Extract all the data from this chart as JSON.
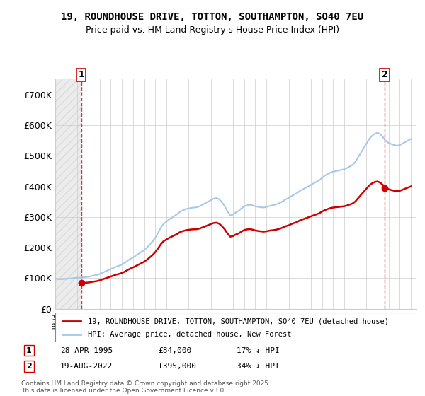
{
  "title": "19, ROUNDHOUSE DRIVE, TOTTON, SOUTHAMPTON, SO40 7EU",
  "subtitle": "Price paid vs. HM Land Registry's House Price Index (HPI)",
  "legend_line1": "19, ROUNDHOUSE DRIVE, TOTTON, SOUTHAMPTON, SO40 7EU (detached house)",
  "legend_line2": "HPI: Average price, detached house, New Forest",
  "marker1_label": "1",
  "marker1_date": "28-APR-1995",
  "marker1_price": "£84,000",
  "marker1_change": "17% ↓ HPI",
  "marker2_label": "2",
  "marker2_date": "19-AUG-2022",
  "marker2_price": "£395,000",
  "marker2_change": "34% ↓ HPI",
  "footer": "Contains HM Land Registry data © Crown copyright and database right 2025.\nThis data is licensed under the Open Government Licence v3.0.",
  "hpi_color": "#a8c8e8",
  "price_color": "#cc0000",
  "marker_color": "#cc0000",
  "hatch_color": "#d0d0d0",
  "background_color": "#ffffff",
  "ylim": [
    0,
    750000
  ],
  "yticks": [
    0,
    100000,
    200000,
    300000,
    400000,
    500000,
    600000,
    700000
  ],
  "ytick_labels": [
    "£0",
    "£100K",
    "£200K",
    "£300K",
    "£400K",
    "£500K",
    "£600K",
    "£700K"
  ],
  "hpi_years": [
    1993.0,
    1993.25,
    1993.5,
    1993.75,
    1994.0,
    1994.25,
    1994.5,
    1994.75,
    1995.0,
    1995.25,
    1995.5,
    1995.75,
    1996.0,
    1996.25,
    1996.5,
    1996.75,
    1997.0,
    1997.25,
    1997.5,
    1997.75,
    1998.0,
    1998.25,
    1998.5,
    1998.75,
    1999.0,
    1999.25,
    1999.5,
    1999.75,
    2000.0,
    2000.25,
    2000.5,
    2000.75,
    2001.0,
    2001.25,
    2001.5,
    2001.75,
    2002.0,
    2002.25,
    2002.5,
    2002.75,
    2003.0,
    2003.25,
    2003.5,
    2003.75,
    2004.0,
    2004.25,
    2004.5,
    2004.75,
    2005.0,
    2005.25,
    2005.5,
    2005.75,
    2006.0,
    2006.25,
    2006.5,
    2006.75,
    2007.0,
    2007.25,
    2007.5,
    2007.75,
    2008.0,
    2008.25,
    2008.5,
    2008.75,
    2009.0,
    2009.25,
    2009.5,
    2009.75,
    2010.0,
    2010.25,
    2010.5,
    2010.75,
    2011.0,
    2011.25,
    2011.5,
    2011.75,
    2012.0,
    2012.25,
    2012.5,
    2012.75,
    2013.0,
    2013.25,
    2013.5,
    2013.75,
    2014.0,
    2014.25,
    2014.5,
    2014.75,
    2015.0,
    2015.25,
    2015.5,
    2015.75,
    2016.0,
    2016.25,
    2016.5,
    2016.75,
    2017.0,
    2017.25,
    2017.5,
    2017.75,
    2018.0,
    2018.25,
    2018.5,
    2018.75,
    2019.0,
    2019.25,
    2019.5,
    2019.75,
    2020.0,
    2020.25,
    2020.5,
    2020.75,
    2021.0,
    2021.25,
    2021.5,
    2021.75,
    2022.0,
    2022.25,
    2022.5,
    2022.75,
    2023.0,
    2023.25,
    2023.5,
    2023.75,
    2024.0,
    2024.25,
    2024.5,
    2024.75,
    2025.0
  ],
  "hpi_values": [
    98000,
    97000,
    96500,
    97000,
    98000,
    99000,
    100000,
    101000,
    101500,
    102000,
    103000,
    104000,
    105000,
    107000,
    109000,
    111000,
    114000,
    118000,
    122000,
    126000,
    130000,
    134000,
    138000,
    141000,
    145000,
    150000,
    157000,
    163000,
    168000,
    174000,
    180000,
    186000,
    192000,
    200000,
    210000,
    220000,
    232000,
    248000,
    265000,
    278000,
    285000,
    292000,
    298000,
    304000,
    310000,
    318000,
    322000,
    326000,
    328000,
    330000,
    331000,
    332000,
    335000,
    340000,
    345000,
    350000,
    355000,
    360000,
    362000,
    358000,
    348000,
    335000,
    318000,
    305000,
    308000,
    315000,
    320000,
    328000,
    335000,
    338000,
    340000,
    338000,
    335000,
    333000,
    332000,
    331000,
    333000,
    336000,
    338000,
    340000,
    343000,
    347000,
    352000,
    358000,
    362000,
    368000,
    373000,
    378000,
    385000,
    390000,
    395000,
    400000,
    405000,
    410000,
    415000,
    420000,
    428000,
    435000,
    440000,
    445000,
    448000,
    450000,
    452000,
    454000,
    456000,
    460000,
    465000,
    470000,
    480000,
    495000,
    510000,
    525000,
    540000,
    555000,
    565000,
    572000,
    575000,
    570000,
    560000,
    548000,
    542000,
    538000,
    535000,
    533000,
    535000,
    540000,
    545000,
    550000,
    555000
  ],
  "price_years": [
    1995.33,
    2022.63
  ],
  "price_values": [
    84000,
    395000
  ],
  "marker1_x": 1995.33,
  "marker1_y": 84000,
  "marker2_x": 2022.63,
  "marker2_y": 395000,
  "xmin": 1993,
  "xmax": 2025.5,
  "hatch_xmin": 1993,
  "hatch_xmax": 1995.33
}
